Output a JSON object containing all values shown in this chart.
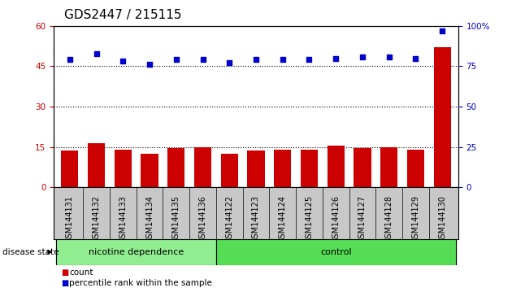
{
  "title": "GDS2447 / 215115",
  "categories": [
    "GSM144131",
    "GSM144132",
    "GSM144133",
    "GSM144134",
    "GSM144135",
    "GSM144136",
    "GSM144122",
    "GSM144123",
    "GSM144124",
    "GSM144125",
    "GSM144126",
    "GSM144127",
    "GSM144128",
    "GSM144129",
    "GSM144130"
  ],
  "bar_values": [
    13.5,
    16.5,
    14.0,
    12.5,
    14.5,
    15.0,
    12.5,
    13.5,
    14.0,
    14.0,
    15.5,
    14.5,
    15.0,
    14.0,
    52.0
  ],
  "dot_values": [
    79,
    83,
    78,
    76,
    79,
    79,
    77,
    79,
    79,
    79,
    80,
    81,
    81,
    80,
    97
  ],
  "bar_color": "#cc0000",
  "dot_color": "#0000cc",
  "left_ylim": [
    0,
    60
  ],
  "right_ylim": [
    0,
    100
  ],
  "left_yticks": [
    0,
    15,
    30,
    45,
    60
  ],
  "right_yticks": [
    0,
    25,
    50,
    75,
    100
  ],
  "left_ytick_labels": [
    "0",
    "15",
    "30",
    "45",
    "60"
  ],
  "right_ytick_labels": [
    "0",
    "25",
    "50",
    "75",
    "100%"
  ],
  "hlines": [
    15,
    30,
    45
  ],
  "group1_label": "nicotine dependence",
  "group2_label": "control",
  "group1_count": 6,
  "group2_count": 9,
  "disease_state_label": "disease state",
  "legend_count_label": "count",
  "legend_pct_label": "percentile rank within the sample",
  "group1_color": "#90ee90",
  "group2_color": "#55dd55",
  "label_bg_color": "#c8c8c8",
  "bar_width": 0.65,
  "title_fontsize": 11,
  "tick_fontsize": 7.5
}
